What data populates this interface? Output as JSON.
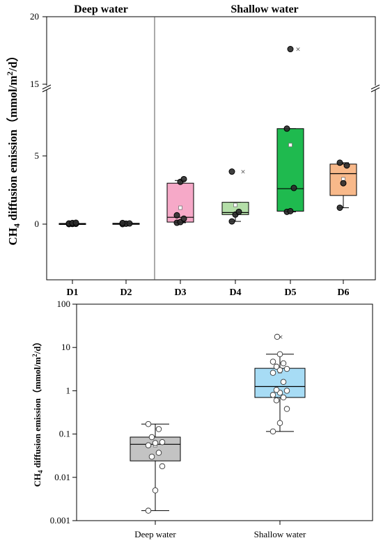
{
  "chart_data": [
    {
      "type": "box",
      "ylabel_main": "CH",
      "ylabel_sub": "4",
      "ylabel_mid": " diffusion emission（mmol/m",
      "ylabel_sup": "2",
      "ylabel_end": "/d）",
      "y_ticks": [
        "0",
        "5",
        "15",
        "20"
      ],
      "y_axis_break": [
        10,
        15
      ],
      "groups": [
        {
          "label": "Deep water",
          "categories": [
            "D1",
            "D2"
          ]
        },
        {
          "label": "Shallow water",
          "categories": [
            "D3",
            "D4",
            "D5",
            "D6"
          ]
        }
      ],
      "categories": [
        "D1",
        "D2",
        "D3",
        "D4",
        "D5",
        "D6"
      ],
      "boxes": [
        {
          "category": "D1",
          "min": 0.0,
          "q1": 0.0,
          "median": 0.03,
          "q3": 0.05,
          "max": 0.1,
          "mean": 0.03,
          "color": "#222222",
          "points": [
            0.0,
            0.01,
            0.02,
            0.05,
            0.08,
            0.1
          ]
        },
        {
          "category": "D2",
          "min": 0.0,
          "q1": 0.02,
          "median": 0.04,
          "q3": 0.06,
          "max": 0.1,
          "mean": 0.04,
          "color": "#222222",
          "points": [
            0.0,
            0.03,
            0.05,
            0.08
          ]
        },
        {
          "category": "D3",
          "min": 0.1,
          "q1": 0.15,
          "median": 0.5,
          "q3": 3.0,
          "max": 3.2,
          "mean": 1.2,
          "color": "#f6a9c8",
          "points": [
            0.1,
            0.15,
            0.4,
            0.65,
            3.1,
            3.3
          ]
        },
        {
          "category": "D4",
          "min": 0.2,
          "q1": 0.7,
          "median": 0.85,
          "q3": 1.6,
          "max": 1.6,
          "mean": 1.4,
          "color": "#b4dea8",
          "points": [
            0.2,
            0.7,
            0.9,
            3.85
          ],
          "outliers": [
            3.85
          ]
        },
        {
          "category": "D5",
          "min": 0.9,
          "q1": 0.95,
          "median": 2.6,
          "q3": 7.0,
          "max": 7.0,
          "mean": 5.8,
          "color": "#1fba4f",
          "points": [
            0.9,
            0.95,
            2.65,
            7.0,
            17.6
          ],
          "outliers": [
            17.6
          ]
        },
        {
          "category": "D6",
          "min": 1.2,
          "q1": 2.1,
          "median": 3.7,
          "q3": 4.4,
          "max": 4.5,
          "mean": 3.3,
          "color": "#f8b98a",
          "points": [
            1.2,
            3.0,
            4.3,
            4.5
          ]
        }
      ]
    },
    {
      "type": "box",
      "ylabel_main": "CH",
      "ylabel_sub": "4",
      "ylabel_mid": " diffusion emission（mmol/m",
      "ylabel_sup": "2",
      "ylabel_end": "/d）",
      "y_scale": "log",
      "ylim": [
        0.001,
        100
      ],
      "y_ticks": [
        "0.001",
        "0.01",
        "0.1",
        "1",
        "10",
        "100"
      ],
      "categories": [
        "Deep water",
        "Shallow water"
      ],
      "boxes": [
        {
          "category": "Deep water",
          "min": 0.0017,
          "q1": 0.024,
          "median": 0.058,
          "q3": 0.085,
          "max": 0.17,
          "mean": 0.055,
          "color": "#c3c3c3",
          "points": [
            0.0017,
            0.005,
            0.018,
            0.03,
            0.037,
            0.055,
            0.062,
            0.065,
            0.085,
            0.13,
            0.17
          ]
        },
        {
          "category": "Shallow water",
          "min": 0.115,
          "q1": 0.7,
          "median": 1.25,
          "q3": 3.3,
          "max": 7.0,
          "mean": 2.8,
          "color": "#a7dcf5",
          "points": [
            0.115,
            0.18,
            0.38,
            0.6,
            0.7,
            0.8,
            0.9,
            1.0,
            1.05,
            1.6,
            2.6,
            3.0,
            3.2,
            3.6,
            4.3,
            4.7,
            7.0,
            17.6
          ],
          "outliers": [
            17.6
          ]
        }
      ]
    }
  ]
}
